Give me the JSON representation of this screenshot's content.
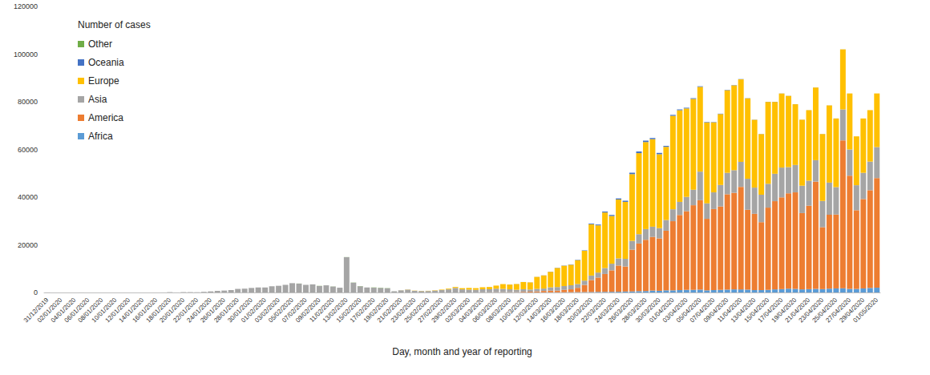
{
  "chart_data": {
    "type": "bar",
    "title": "Number of cases",
    "x_label": "Day, month and year of reporting",
    "stacked": true,
    "grid": false,
    "legend": "upper left",
    "ylim": [
      0,
      120000
    ],
    "yticks": [
      0,
      20000,
      40000,
      60000,
      80000,
      100000,
      120000
    ],
    "categories": [
      "31/12/2019",
      null,
      "02/01/2020",
      null,
      "04/01/2020",
      null,
      "06/01/2020",
      null,
      "08/01/2020",
      null,
      "10/01/2020",
      null,
      "12/01/2020",
      null,
      "14/01/2020",
      null,
      "16/01/2020",
      null,
      "18/01/2020",
      null,
      "20/01/2020",
      null,
      "22/01/2020",
      null,
      "24/01/2020",
      null,
      "26/01/2020",
      null,
      "28/01/2020",
      null,
      "30/01/2020",
      null,
      "01/02/2020",
      null,
      "03/02/2020",
      null,
      "05/02/2020",
      null,
      "07/02/2020",
      null,
      "09/02/2020",
      null,
      "11/02/2020",
      null,
      "13/02/2020",
      null,
      "15/02/2020",
      null,
      "17/02/2020",
      null,
      "19/02/2020",
      null,
      "21/02/2020",
      null,
      "23/02/2020",
      null,
      "25/02/2020",
      null,
      "27/02/2020",
      null,
      "29/02/2020",
      null,
      "02/03/2020",
      null,
      "04/03/2020",
      null,
      "06/03/2020",
      null,
      "08/03/2020",
      null,
      "10/03/2020",
      null,
      "12/03/2020",
      null,
      "14/03/2020",
      null,
      "16/03/2020",
      null,
      "18/03/2020",
      null,
      "20/03/2020",
      null,
      "22/03/2020",
      null,
      "24/03/2020",
      null,
      "26/03/2020",
      null,
      "28/03/2020",
      null,
      "30/03/2020",
      null,
      "01/04/2020",
      null,
      "03/04/2020",
      null,
      "05/04/2020",
      null,
      "07/04/2020",
      null,
      "09/04/2020",
      null,
      "11/04/2020",
      null,
      "13/04/2020",
      null,
      "15/04/2020",
      null,
      "17/04/2020",
      null,
      "19/04/2020",
      null,
      "21/04/2020",
      null,
      "23/04/2020",
      null,
      "25/04/2020",
      null,
      "27/04/2020",
      null,
      "29/04/2020",
      null,
      "01/05/2020"
    ],
    "series": [
      {
        "name": "Africa",
        "color": "#5b9bd5",
        "values": [
          0,
          0,
          0,
          0,
          0,
          0,
          0,
          0,
          0,
          0,
          0,
          0,
          0,
          0,
          0,
          0,
          0,
          0,
          0,
          0,
          0,
          0,
          0,
          0,
          0,
          0,
          0,
          0,
          0,
          0,
          0,
          0,
          0,
          0,
          0,
          0,
          0,
          0,
          0,
          0,
          0,
          0,
          0,
          0,
          0,
          1,
          0,
          0,
          0,
          0,
          0,
          0,
          0,
          0,
          0,
          0,
          1,
          0,
          0,
          0,
          0,
          0,
          1,
          2,
          3,
          5,
          10,
          10,
          20,
          20,
          20,
          30,
          30,
          40,
          60,
          80,
          100,
          120,
          150,
          170,
          200,
          250,
          250,
          280,
          300,
          400,
          450,
          550,
          600,
          800,
          700,
          900,
          900,
          1000,
          1100,
          1100,
          1200,
          900,
          1000,
          1100,
          1200,
          1300,
          1300,
          1200,
          1000,
          1000,
          1100,
          1300,
          1400,
          1600,
          1500,
          1300,
          1400,
          1500,
          1400,
          1600,
          1700,
          1800,
          1500,
          1500,
          1700,
          1900,
          2000
        ]
      },
      {
        "name": "America",
        "color": "#ed7d31",
        "values": [
          0,
          0,
          0,
          0,
          0,
          0,
          0,
          0,
          0,
          0,
          0,
          0,
          0,
          0,
          0,
          0,
          0,
          0,
          0,
          0,
          0,
          1,
          0,
          0,
          1,
          0,
          3,
          0,
          0,
          0,
          0,
          3,
          1,
          1,
          0,
          0,
          1,
          0,
          0,
          0,
          0,
          1,
          0,
          1,
          0,
          0,
          0,
          0,
          0,
          0,
          0,
          0,
          3,
          0,
          0,
          0,
          14,
          0,
          2,
          3,
          5,
          5,
          10,
          20,
          40,
          50,
          80,
          100,
          100,
          120,
          250,
          300,
          400,
          600,
          700,
          700,
          1000,
          1200,
          1800,
          3000,
          5000,
          6000,
          7500,
          9000,
          11000,
          10500,
          17500,
          20000,
          21500,
          22500,
          22000,
          25000,
          29000,
          31500,
          33000,
          35500,
          37500,
          30000,
          34000,
          35000,
          40000,
          40500,
          43000,
          33500,
          32000,
          28500,
          34500,
          37000,
          38500,
          40000,
          40500,
          32000,
          35000,
          45000,
          26000,
          31000,
          31000,
          62000,
          47500,
          33000,
          37500,
          41000,
          46000
        ]
      },
      {
        "name": "Asia",
        "color": "#a5a5a5",
        "values": [
          27,
          0,
          0,
          0,
          0,
          17,
          0,
          0,
          0,
          0,
          0,
          0,
          1,
          0,
          1,
          0,
          4,
          17,
          136,
          19,
          151,
          140,
          97,
          266,
          453,
          673,
          797,
          1000,
          1500,
          1600,
          1900,
          2100,
          2100,
          2600,
          2800,
          3200,
          3900,
          3700,
          3200,
          3400,
          2700,
          3000,
          2500,
          2000,
          14800,
          4100,
          2600,
          2100,
          2000,
          1900,
          1750,
          500,
          900,
          1200,
          700,
          600,
          600,
          800,
          1000,
          1300,
          1900,
          1300,
          1200,
          1100,
          1300,
          1300,
          1500,
          1400,
          1200,
          1000,
          1100,
          900,
          1100,
          1000,
          1400,
          1500,
          1600,
          1700,
          1600,
          1800,
          1900,
          2100,
          2500,
          2800,
          3000,
          3200,
          3700,
          3900,
          4500,
          4300,
          4300,
          4500,
          5000,
          5500,
          6000,
          6500,
          12000,
          6500,
          7000,
          9000,
          9000,
          9500,
          10500,
          13000,
          11000,
          11500,
          10000,
          11500,
          12500,
          11000,
          11500,
          11500,
          10500,
          9000,
          11000,
          13500,
          11500,
          13000,
          11000,
          10500,
          11000,
          12000,
          13000
        ]
      },
      {
        "name": "Europe",
        "color": "#ffc000",
        "values": [
          0,
          0,
          0,
          0,
          0,
          0,
          0,
          0,
          0,
          0,
          0,
          0,
          0,
          0,
          0,
          0,
          0,
          0,
          0,
          0,
          0,
          0,
          0,
          0,
          0,
          3,
          0,
          1,
          3,
          1,
          0,
          5,
          1,
          1,
          0,
          0,
          1,
          1,
          0,
          3,
          2,
          1,
          2,
          0,
          0,
          1,
          0,
          0,
          0,
          0,
          0,
          0,
          20,
          60,
          80,
          70,
          90,
          130,
          200,
          300,
          400,
          500,
          700,
          700,
          850,
          950,
          1300,
          2000,
          2000,
          2400,
          3000,
          3000,
          5000,
          5500,
          6500,
          8000,
          8500,
          8600,
          10000,
          12500,
          21500,
          19800,
          23300,
          20000,
          24700,
          23900,
          28000,
          34000,
          36500,
          36700,
          31000,
          30700,
          39200,
          38450,
          37100,
          38100,
          35550,
          33900,
          29350,
          29750,
          34650,
          35580,
          34600,
          33720,
          28440,
          25450,
          34350,
          30150,
          31060,
          29860,
          25470,
          27670,
          29580,
          30480,
          28070,
          32380,
          28780,
          25180,
          23490,
          20490,
          22790,
          21590,
          22490
        ]
      },
      {
        "name": "Oceania",
        "color": "#4472c4",
        "values": [
          0,
          0,
          0,
          0,
          0,
          0,
          0,
          0,
          0,
          0,
          0,
          0,
          0,
          0,
          0,
          0,
          0,
          0,
          0,
          0,
          0,
          0,
          0,
          0,
          0,
          4,
          0,
          1,
          0,
          2,
          0,
          2,
          0,
          3,
          0,
          0,
          0,
          0,
          0,
          0,
          0,
          0,
          0,
          0,
          0,
          0,
          0,
          0,
          0,
          0,
          0,
          0,
          0,
          0,
          0,
          0,
          0,
          0,
          0,
          0,
          2,
          0,
          2,
          5,
          8,
          10,
          10,
          10,
          20,
          20,
          20,
          30,
          30,
          50,
          60,
          80,
          100,
          120,
          150,
          180,
          300,
          350,
          400,
          450,
          450,
          500,
          600,
          700,
          600,
          500,
          550,
          400,
          400,
          350,
          300,
          300,
          250,
          200,
          150,
          150,
          150,
          120,
          100,
          80,
          60,
          50,
          50,
          50,
          40,
          40,
          30,
          30,
          20,
          20,
          30,
          20,
          20,
          20,
          10,
          10,
          10,
          10,
          10
        ]
      },
      {
        "name": "Other",
        "color": "#70ad47",
        "values": [
          0,
          0,
          0,
          0,
          0,
          0,
          0,
          0,
          0,
          0,
          0,
          0,
          0,
          0,
          0,
          0,
          0,
          0,
          0,
          0,
          0,
          0,
          0,
          0,
          0,
          0,
          0,
          0,
          0,
          0,
          0,
          0,
          0,
          0,
          0,
          0,
          10,
          41,
          3,
          6,
          64,
          0,
          39,
          0,
          44,
          67,
          70,
          0,
          99,
          88,
          79,
          13,
          0,
          0,
          0,
          0,
          0,
          0,
          0,
          0,
          0,
          0,
          0,
          0,
          0,
          0,
          0,
          0,
          0,
          0,
          0,
          0,
          0,
          0,
          0,
          0,
          0,
          0,
          0,
          0,
          0,
          0,
          0,
          0,
          0,
          0,
          0,
          0,
          0,
          0,
          0,
          0,
          0,
          0,
          0,
          0,
          0,
          0,
          0,
          0,
          0,
          0,
          0,
          0,
          0,
          0,
          0,
          0,
          0,
          0,
          0,
          0,
          0,
          0,
          0,
          0,
          0,
          0,
          0,
          0,
          0,
          0,
          0
        ]
      }
    ]
  }
}
